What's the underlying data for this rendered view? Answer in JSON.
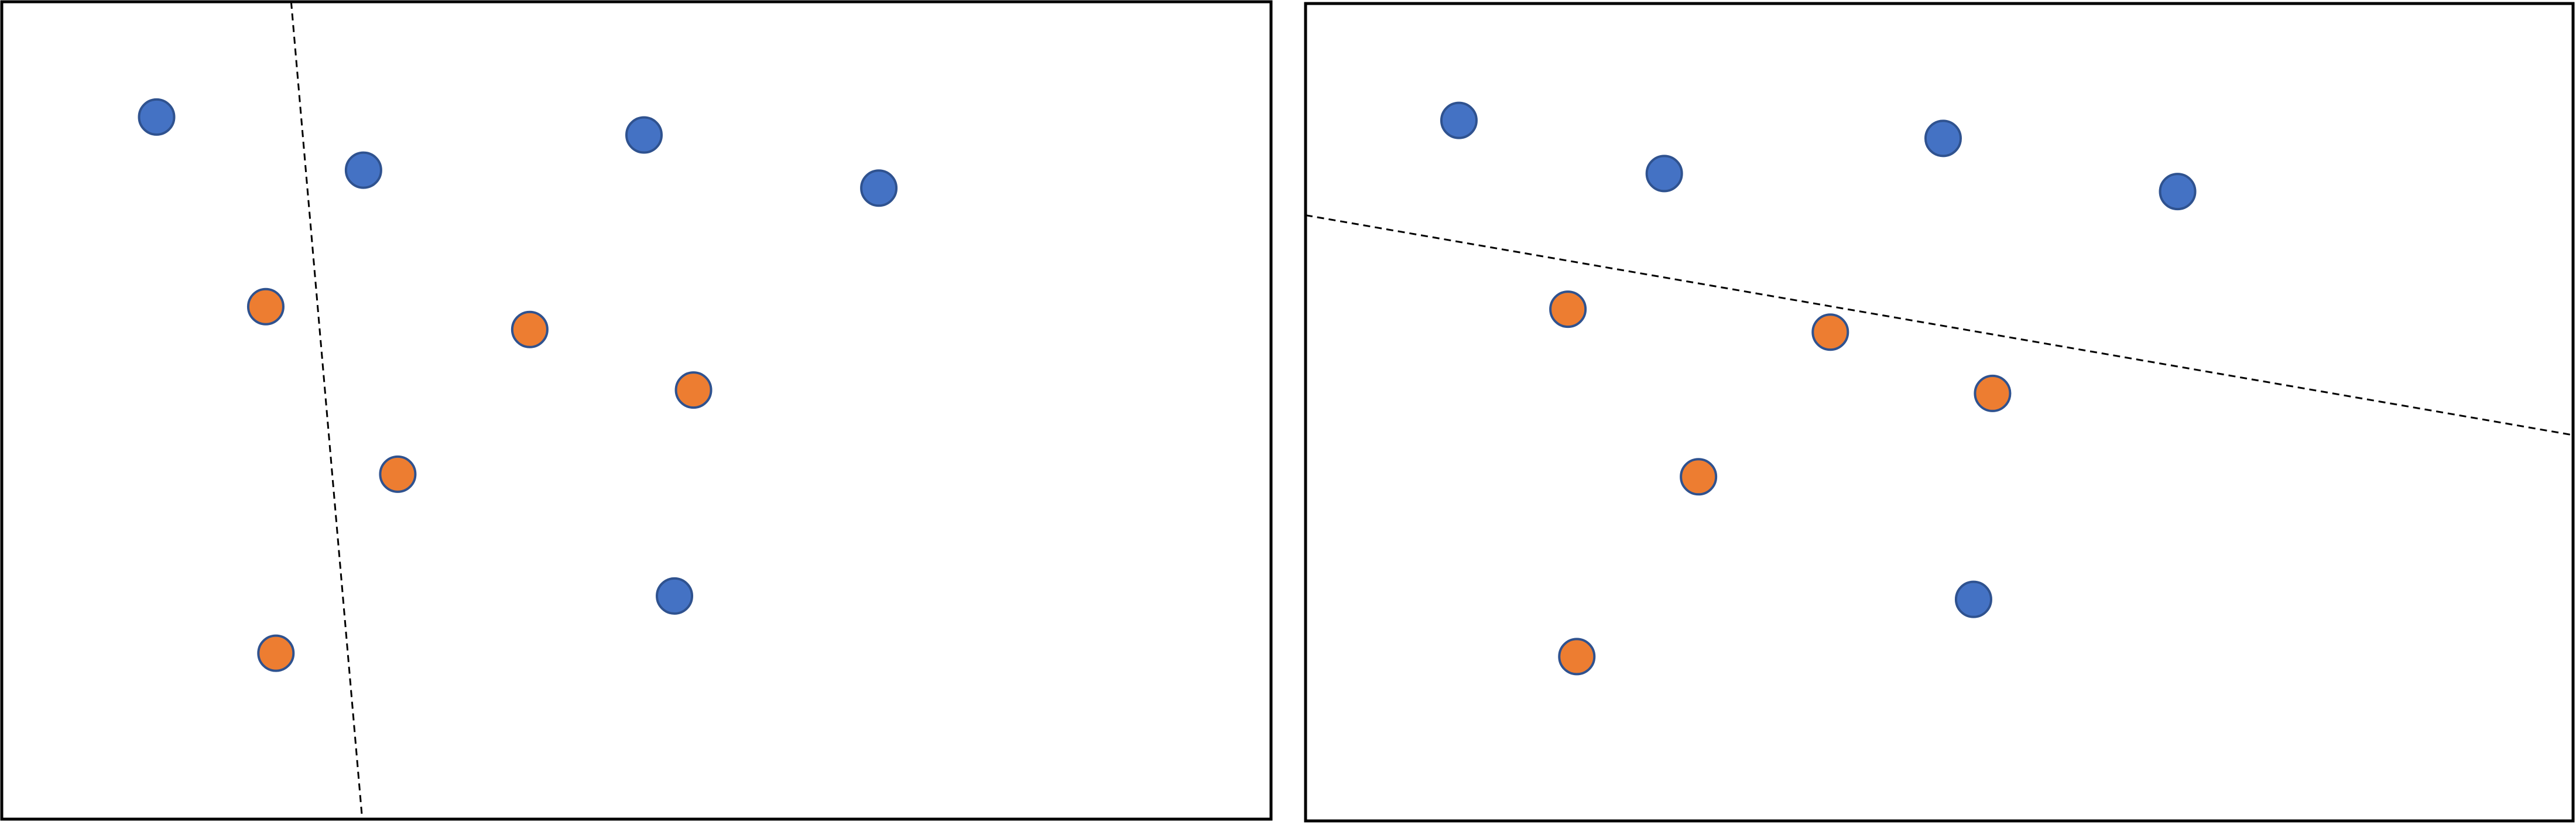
{
  "colors": {
    "background": "#ffffff",
    "frame": "#000000",
    "separator": "#000000",
    "class_a_fill": "#4472c4",
    "class_a_stroke": "#2f528f",
    "class_b_fill": "#ed7d31",
    "class_b_stroke": "#2f528f"
  },
  "panels": [
    {
      "id": "left",
      "separator_style": "dashed",
      "points": [
        {
          "class": "a",
          "x": 0.122,
          "y": 0.141
        },
        {
          "class": "a",
          "x": 0.285,
          "y": 0.206
        },
        {
          "class": "a",
          "x": 0.506,
          "y": 0.163
        },
        {
          "class": "a",
          "x": 0.691,
          "y": 0.228
        },
        {
          "class": "b",
          "x": 0.208,
          "y": 0.373
        },
        {
          "class": "b",
          "x": 0.416,
          "y": 0.401
        },
        {
          "class": "b",
          "x": 0.545,
          "y": 0.475
        },
        {
          "class": "b",
          "x": 0.312,
          "y": 0.578
        },
        {
          "class": "a",
          "x": 0.53,
          "y": 0.727
        },
        {
          "class": "b",
          "x": 0.216,
          "y": 0.797
        }
      ],
      "separator": {
        "x1": 0.228,
        "y1": 0.0,
        "x2": 0.284,
        "y2": 1.0
      }
    },
    {
      "id": "right",
      "separator_style": "dashed",
      "points": [
        {
          "class": "a",
          "x": 0.121,
          "y": 0.143
        },
        {
          "class": "a",
          "x": 0.283,
          "y": 0.208
        },
        {
          "class": "a",
          "x": 0.503,
          "y": 0.165
        },
        {
          "class": "a",
          "x": 0.688,
          "y": 0.23
        },
        {
          "class": "b",
          "x": 0.207,
          "y": 0.374
        },
        {
          "class": "b",
          "x": 0.414,
          "y": 0.402
        },
        {
          "class": "b",
          "x": 0.542,
          "y": 0.477
        },
        {
          "class": "b",
          "x": 0.31,
          "y": 0.579
        },
        {
          "class": "a",
          "x": 0.527,
          "y": 0.729
        },
        {
          "class": "b",
          "x": 0.214,
          "y": 0.799
        }
      ],
      "separator": {
        "x1": 0.0,
        "y1": 0.259,
        "x2": 1.0,
        "y2": 0.528
      }
    }
  ]
}
